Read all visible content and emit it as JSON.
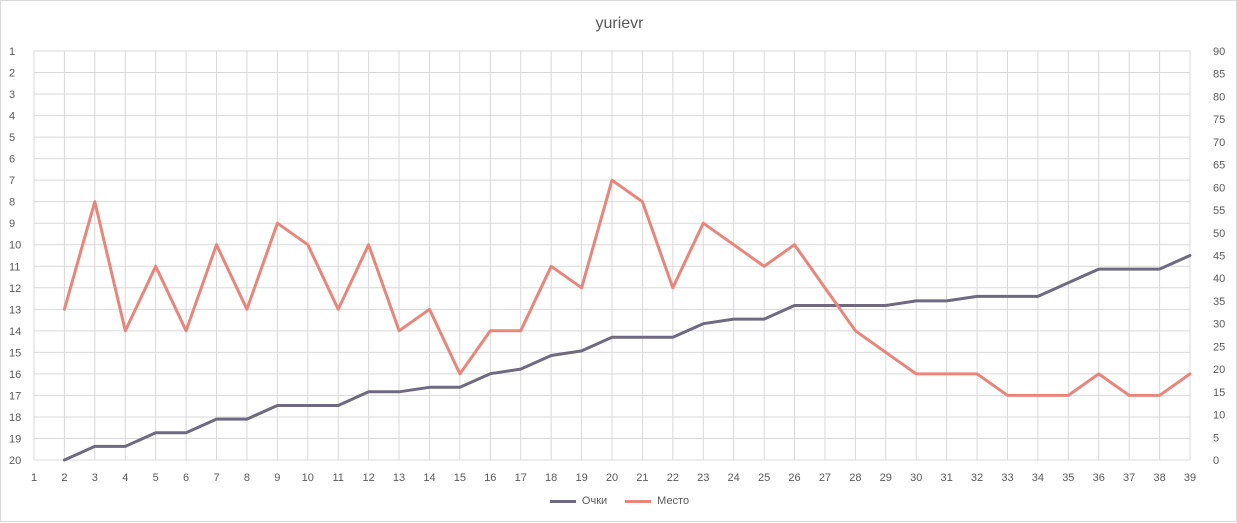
{
  "chart_data": {
    "type": "line",
    "title": "yurievr",
    "x": [
      1,
      2,
      3,
      4,
      5,
      6,
      7,
      8,
      9,
      10,
      11,
      12,
      13,
      14,
      15,
      16,
      17,
      18,
      19,
      20,
      21,
      22,
      23,
      24,
      25,
      26,
      27,
      28,
      29,
      30,
      31,
      32,
      33,
      34,
      35,
      36,
      37,
      38,
      39
    ],
    "x_range": [
      1,
      39
    ],
    "left_axis": {
      "ticks": [
        1,
        2,
        3,
        4,
        5,
        6,
        7,
        8,
        9,
        10,
        11,
        12,
        13,
        14,
        15,
        16,
        17,
        18,
        19,
        20
      ],
      "reversed": true,
      "ylim": [
        1,
        20
      ]
    },
    "right_axis": {
      "ticks": [
        0,
        5,
        10,
        15,
        20,
        25,
        30,
        35,
        40,
        45,
        50,
        55,
        60,
        65,
        70,
        75,
        80,
        85,
        90
      ],
      "ylim": [
        0,
        90
      ]
    },
    "grid": true,
    "legend_position": "bottom",
    "series": [
      {
        "name": "Очки",
        "axis": "right",
        "color": "#6f6a81",
        "x": [
          2,
          3,
          4,
          5,
          6,
          7,
          8,
          9,
          10,
          11,
          12,
          13,
          14,
          15,
          16,
          17,
          18,
          19,
          20,
          21,
          22,
          23,
          24,
          25,
          26,
          27,
          28,
          29,
          30,
          31,
          32,
          33,
          34,
          35,
          36,
          37,
          38,
          39
        ],
        "values": [
          0,
          3,
          3,
          6,
          6,
          9,
          9,
          12,
          12,
          12,
          15,
          15,
          16,
          16,
          19,
          20,
          23,
          24,
          27,
          27,
          27,
          30,
          31,
          31,
          34,
          34,
          34,
          34,
          35,
          35,
          36,
          36,
          36,
          39,
          42,
          42,
          42,
          45
        ]
      },
      {
        "name": "Место",
        "axis": "left",
        "color": "#e8867c",
        "x": [
          2,
          3,
          4,
          5,
          6,
          7,
          8,
          9,
          10,
          11,
          12,
          13,
          14,
          15,
          16,
          17,
          18,
          19,
          20,
          21,
          22,
          23,
          24,
          25,
          26,
          27,
          28,
          29,
          30,
          31,
          32,
          33,
          34,
          35,
          36,
          37,
          38,
          39
        ],
        "values": [
          13,
          8,
          14,
          11,
          14,
          10,
          13,
          9,
          10,
          13,
          10,
          14,
          13,
          16,
          14,
          14,
          11,
          12,
          7,
          8,
          12,
          9,
          10,
          11,
          10,
          12,
          14,
          15,
          16,
          16,
          16,
          17,
          17,
          17,
          16,
          17,
          17,
          16
        ]
      }
    ]
  }
}
